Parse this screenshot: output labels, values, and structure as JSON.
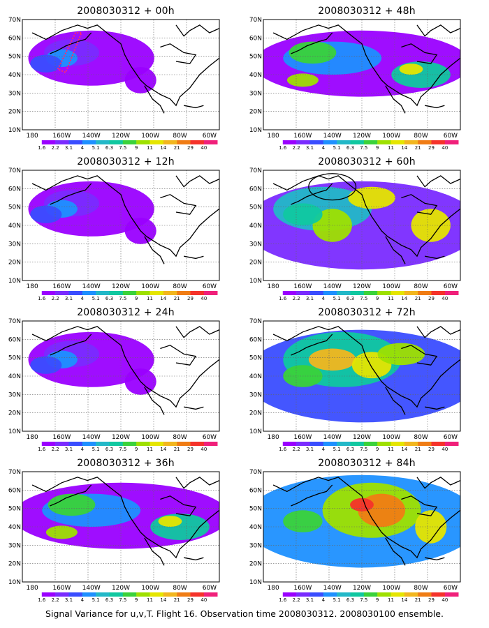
{
  "footer": "Signal Variance for u,v,T. Flight 16. Observation time 2008030312. 2008030100 ensemble.",
  "latitude_labels": [
    "70N",
    "60N",
    "50N",
    "40N",
    "30N",
    "20N",
    "10N"
  ],
  "longitude_labels": [
    "180",
    "160W",
    "140W",
    "120W",
    "100W",
    "80W",
    "60W"
  ],
  "colorbar": {
    "labels": [
      "1.6",
      "2.2",
      "3.1",
      "4",
      "5.1",
      "6.3",
      "7.5",
      "9",
      "11",
      "14",
      "21",
      "29",
      "40"
    ],
    "colors": [
      "#ffffff",
      "#9a00ff",
      "#7a2bff",
      "#3a4dff",
      "#1e90ff",
      "#22b8c8",
      "#10c8a0",
      "#3ad23a",
      "#9ee000",
      "#e5e500",
      "#f2b61e",
      "#f07c14",
      "#f5322a",
      "#f0207a"
    ]
  },
  "panels": [
    {
      "title": "2008030312 + 00h",
      "level": 1
    },
    {
      "title": "2008030312 + 48h",
      "level": 2
    },
    {
      "title": "2008030312 + 12h",
      "level": 1
    },
    {
      "title": "2008030312 + 60h",
      "level": 3
    },
    {
      "title": "2008030312 + 24h",
      "level": 1
    },
    {
      "title": "2008030312 + 72h",
      "level": 4
    },
    {
      "title": "2008030312 + 36h",
      "level": 2
    },
    {
      "title": "2008030312 + 84h",
      "level": 5
    }
  ]
}
